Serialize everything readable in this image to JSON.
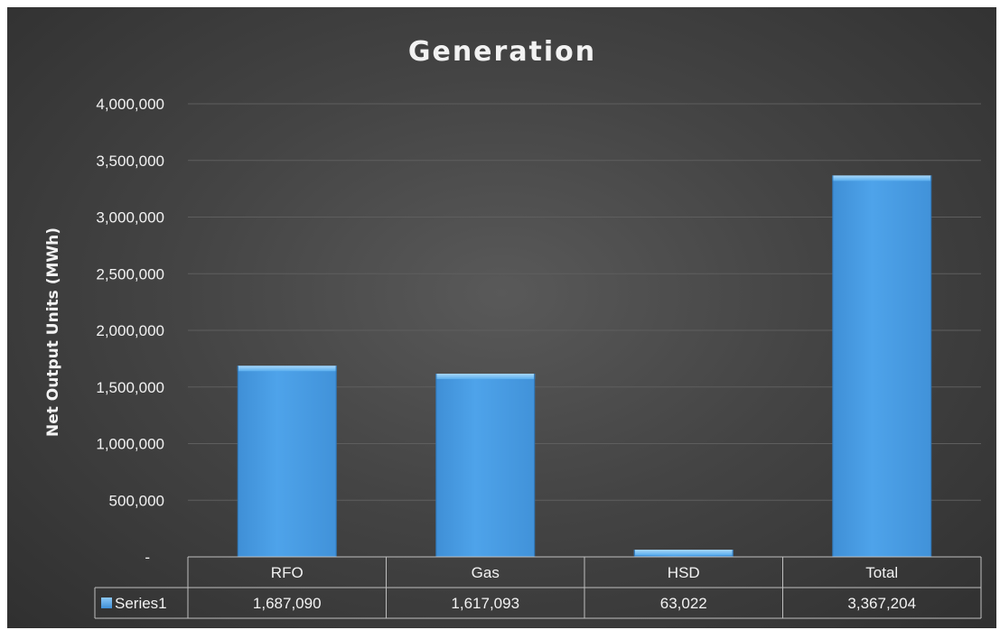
{
  "chart_data": {
    "type": "bar",
    "title": "Generation",
    "xlabel": "",
    "ylabel": "Net Output Units (MWh)",
    "categories": [
      "RFO",
      "Gas",
      "HSD",
      "Total"
    ],
    "series": [
      {
        "name": "Series1",
        "values": [
          1687090,
          1617093,
          63022,
          3367204
        ],
        "value_labels": [
          "1,687,090",
          "1,617,093",
          "63,022",
          "3,367,204"
        ]
      }
    ],
    "ylim": [
      0,
      4000000
    ],
    "y_ticks": [
      {
        "value": 0,
        "label": "-"
      },
      {
        "value": 500000,
        "label": "500,000"
      },
      {
        "value": 1000000,
        "label": "1,000,000"
      },
      {
        "value": 1500000,
        "label": "1,500,000"
      },
      {
        "value": 2000000,
        "label": "2,000,000"
      },
      {
        "value": 2500000,
        "label": "2,500,000"
      },
      {
        "value": 3000000,
        "label": "3,000,000"
      },
      {
        "value": 3500000,
        "label": "3,500,000"
      },
      {
        "value": 4000000,
        "label": "4,000,000"
      }
    ],
    "grid": true,
    "legend": "data-table",
    "colors": {
      "bar": "#4a9fe6",
      "bar_highlight": "#8cc8f5",
      "background": "#444444",
      "text": "#f2f2f2",
      "grid": "#5e5e5e",
      "table_border": "#bfbfbf"
    }
  }
}
